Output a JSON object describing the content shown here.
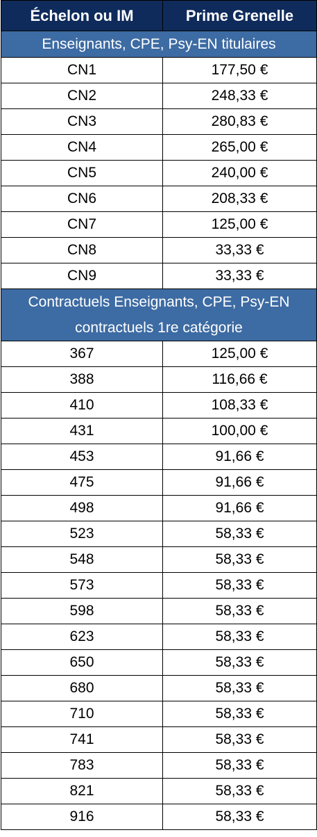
{
  "header": {
    "columns": [
      "Échelon ou IM",
      "Prime Grenelle"
    ]
  },
  "sections": [
    {
      "title": "Enseignants, CPE, Psy-EN titulaires",
      "rows": [
        [
          "CN1",
          "177,50 €"
        ],
        [
          "CN2",
          "248,33 €"
        ],
        [
          "CN3",
          "280,83 €"
        ],
        [
          "CN4",
          "265,00 €"
        ],
        [
          "CN5",
          "240,00 €"
        ],
        [
          "CN6",
          "208,33 €"
        ],
        [
          "CN7",
          "125,00 €"
        ],
        [
          "CN8",
          "33,33 €"
        ],
        [
          "CN9",
          "33,33 €"
        ]
      ]
    },
    {
      "title": "Contractuels Enseignants, CPE, Psy-EN contractuels 1re catégorie",
      "rows": [
        [
          "367",
          "125,00 €"
        ],
        [
          "388",
          "116,66 €"
        ],
        [
          "410",
          "108,33 €"
        ],
        [
          "431",
          "100,00 €"
        ],
        [
          "453",
          "91,66 €"
        ],
        [
          "475",
          "91,66 €"
        ],
        [
          "498",
          "91,66 €"
        ],
        [
          "523",
          "58,33 €"
        ],
        [
          "548",
          "58,33 €"
        ],
        [
          "573",
          "58,33 €"
        ],
        [
          "598",
          "58,33 €"
        ],
        [
          "623",
          "58,33 €"
        ],
        [
          "650",
          "58,33 €"
        ],
        [
          "680",
          "58,33 €"
        ],
        [
          "710",
          "58,33 €"
        ],
        [
          "741",
          "58,33 €"
        ],
        [
          "783",
          "58,33 €"
        ],
        [
          "821",
          "58,33 €"
        ],
        [
          "916",
          "58,33 €"
        ]
      ]
    }
  ]
}
